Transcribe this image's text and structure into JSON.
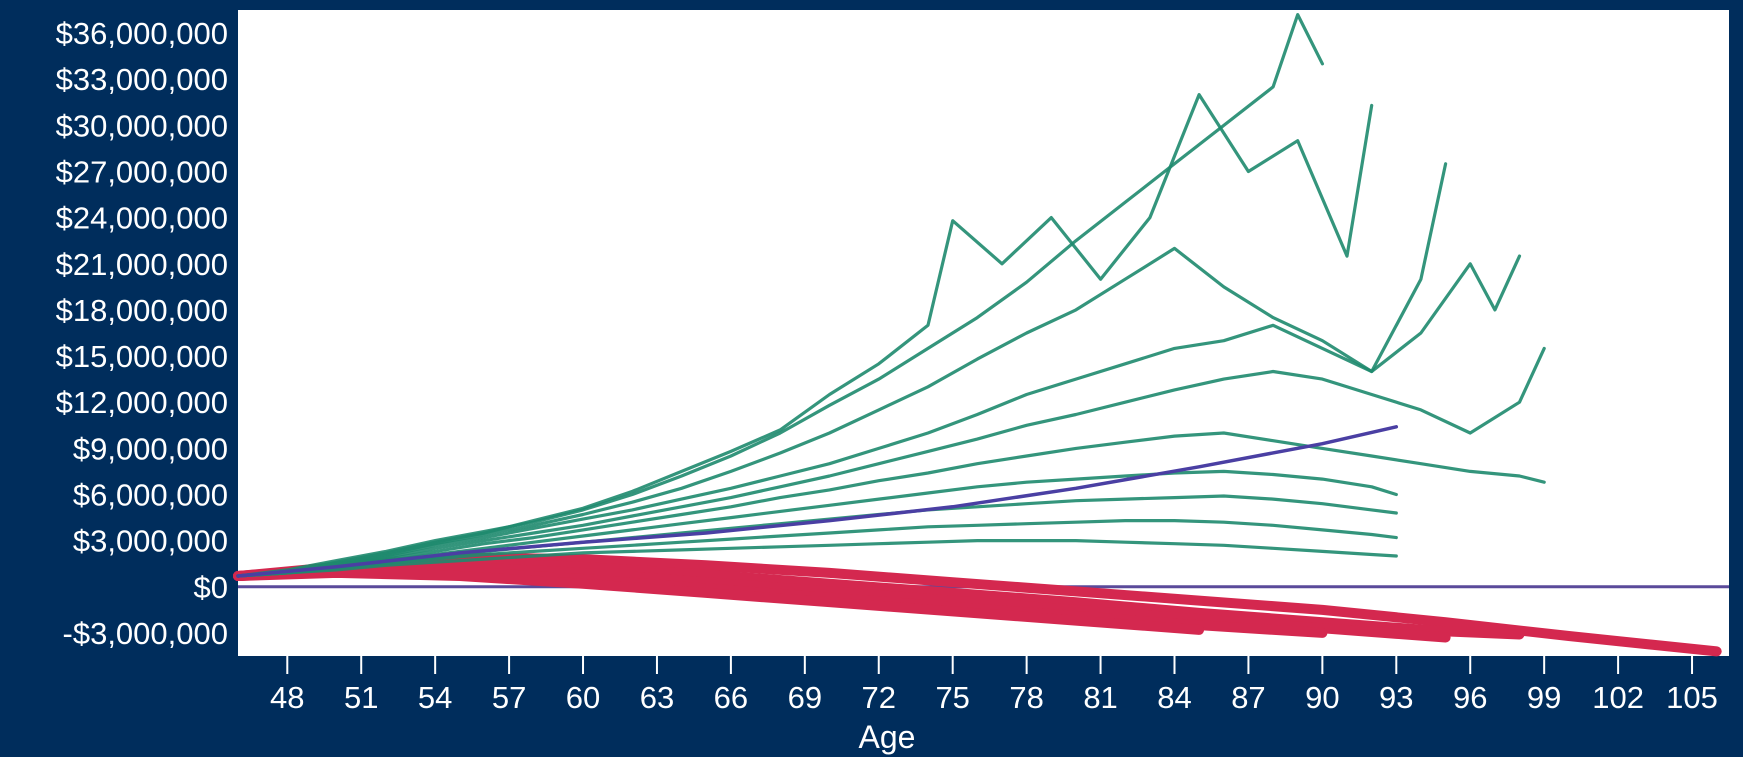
{
  "chart_data": {
    "type": "line",
    "title": "",
    "xlabel": "Age",
    "ylabel": "",
    "xlim": [
      46,
      106.5
    ],
    "ylim": [
      -4500000,
      37500000
    ],
    "x_ticks": [
      48,
      51,
      54,
      57,
      60,
      63,
      66,
      69,
      72,
      75,
      78,
      81,
      84,
      87,
      90,
      93,
      96,
      99,
      102,
      105
    ],
    "x_tick_labels": [
      "48",
      "51",
      "54",
      "57",
      "60",
      "63",
      "66",
      "69",
      "72",
      "75",
      "78",
      "81",
      "84",
      "87",
      "90",
      "93",
      "96",
      "99",
      "102",
      "105"
    ],
    "y_ticks": [
      -3000000,
      0,
      3000000,
      6000000,
      9000000,
      12000000,
      15000000,
      18000000,
      21000000,
      24000000,
      27000000,
      30000000,
      33000000,
      36000000
    ],
    "y_tick_labels": [
      "-$3,000,000",
      "$0",
      "$3,000,000",
      "$6,000,000",
      "$9,000,000",
      "$12,000,000",
      "$15,000,000",
      "$18,000,000",
      "$21,000,000",
      "$24,000,000",
      "$27,000,000",
      "$30,000,000",
      "$33,000,000",
      "$36,000,000"
    ],
    "grid": false,
    "legend": "none",
    "colors": {
      "frame": "#002d5c",
      "plot_bg": "#ffffff",
      "success": "#1e8a6e",
      "failure": "#d4284f",
      "median": "#4a3fa3",
      "zero_line": "#5a4a9a"
    },
    "series": [
      {
        "group": "success",
        "x": [
          46,
          48,
          50,
          52,
          54,
          56,
          58,
          60,
          62,
          64,
          66,
          68,
          70,
          72,
          74,
          76,
          78,
          80,
          82,
          84,
          86,
          88,
          89,
          90
        ],
        "values": [
          700000,
          1100000,
          1700000,
          2300000,
          3000000,
          3600000,
          4200000,
          5000000,
          6000000,
          7200000,
          8500000,
          10000000,
          11800000,
          13500000,
          15500000,
          17500000,
          19800000,
          22500000,
          25000000,
          27500000,
          30000000,
          32500000,
          37200000,
          34000000
        ]
      },
      {
        "group": "success",
        "x": [
          46,
          48,
          50,
          52,
          54,
          56,
          58,
          60,
          62,
          64,
          66,
          68,
          70,
          72,
          74,
          75,
          77,
          79,
          81,
          83,
          85,
          87,
          89,
          91,
          92
        ],
        "values": [
          700000,
          1000000,
          1600000,
          2200000,
          2900000,
          3500000,
          4300000,
          5100000,
          6200000,
          7500000,
          8800000,
          10200000,
          12500000,
          14500000,
          17000000,
          23800000,
          21000000,
          24000000,
          20000000,
          24000000,
          32000000,
          27000000,
          29000000,
          21500000,
          31300000
        ]
      },
      {
        "group": "success",
        "x": [
          46,
          48,
          50,
          52,
          54,
          56,
          58,
          60,
          62,
          64,
          66,
          68,
          70,
          72,
          74,
          76,
          78,
          80,
          82,
          84,
          86,
          88,
          90,
          92,
          94,
          95
        ],
        "values": [
          700000,
          1000000,
          1500000,
          2100000,
          2800000,
          3400000,
          4000000,
          4700000,
          5500000,
          6400000,
          7500000,
          8700000,
          10000000,
          11500000,
          13000000,
          14800000,
          16500000,
          18000000,
          20000000,
          22000000,
          19500000,
          17500000,
          16000000,
          14000000,
          20000000,
          27500000
        ]
      },
      {
        "group": "success",
        "x": [
          46,
          48,
          50,
          52,
          54,
          56,
          58,
          60,
          62,
          64,
          66,
          68,
          70,
          72,
          74,
          76,
          78,
          80,
          82,
          84,
          86,
          88,
          90,
          92,
          94,
          96,
          97,
          98
        ],
        "values": [
          700000,
          1000000,
          1500000,
          2000000,
          2700000,
          3200000,
          3800000,
          4400000,
          5000000,
          5700000,
          6400000,
          7200000,
          8000000,
          9000000,
          10000000,
          11200000,
          12500000,
          13500000,
          14500000,
          15500000,
          16000000,
          17000000,
          15500000,
          14000000,
          16500000,
          21000000,
          18000000,
          21500000
        ]
      },
      {
        "group": "success",
        "x": [
          46,
          48,
          50,
          52,
          54,
          56,
          58,
          60,
          62,
          64,
          66,
          68,
          70,
          72,
          74,
          76,
          78,
          80,
          82,
          84,
          86,
          88,
          90,
          92,
          94,
          96,
          98,
          99
        ],
        "values": [
          700000,
          1000000,
          1400000,
          1900000,
          2500000,
          3000000,
          3500000,
          4000000,
          4600000,
          5200000,
          5800000,
          6500000,
          7200000,
          8000000,
          8800000,
          9600000,
          10500000,
          11200000,
          12000000,
          12800000,
          13500000,
          14000000,
          13500000,
          12500000,
          11500000,
          10000000,
          12000000,
          15500000
        ]
      },
      {
        "group": "success",
        "x": [
          46,
          48,
          50,
          52,
          54,
          56,
          58,
          60,
          62,
          64,
          66,
          68,
          70,
          72,
          74,
          76,
          78,
          80,
          82,
          84,
          86,
          88,
          90,
          92,
          94,
          96,
          98,
          99
        ],
        "values": [
          700000,
          1000000,
          1400000,
          1800000,
          2300000,
          2800000,
          3200000,
          3700000,
          4200000,
          4700000,
          5200000,
          5800000,
          6300000,
          6900000,
          7400000,
          8000000,
          8500000,
          9000000,
          9400000,
          9800000,
          10000000,
          9500000,
          9000000,
          8500000,
          8000000,
          7500000,
          7200000,
          6800000
        ]
      },
      {
        "group": "success",
        "x": [
          46,
          48,
          50,
          52,
          54,
          56,
          58,
          60,
          62,
          64,
          66,
          68,
          70,
          72,
          74,
          76,
          78,
          80,
          82,
          84,
          86,
          88,
          90,
          92,
          93
        ],
        "values": [
          700000,
          900000,
          1300000,
          1700000,
          2100000,
          2500000,
          2900000,
          3300000,
          3700000,
          4100000,
          4500000,
          4900000,
          5300000,
          5700000,
          6100000,
          6500000,
          6800000,
          7000000,
          7200000,
          7400000,
          7500000,
          7300000,
          7000000,
          6500000,
          6000000
        ]
      },
      {
        "group": "success",
        "x": [
          46,
          48,
          50,
          52,
          54,
          56,
          58,
          60,
          62,
          64,
          66,
          68,
          70,
          72,
          74,
          76,
          78,
          80,
          82,
          84,
          86,
          88,
          90,
          92,
          93
        ],
        "values": [
          700000,
          900000,
          1200000,
          1600000,
          1900000,
          2300000,
          2600000,
          2900000,
          3200000,
          3500000,
          3800000,
          4100000,
          4400000,
          4700000,
          5000000,
          5200000,
          5400000,
          5600000,
          5700000,
          5800000,
          5900000,
          5700000,
          5400000,
          5000000,
          4800000
        ]
      },
      {
        "group": "success",
        "x": [
          46,
          48,
          50,
          52,
          54,
          56,
          58,
          60,
          62,
          64,
          66,
          68,
          70,
          72,
          74,
          76,
          78,
          80,
          82,
          84,
          86,
          88,
          90,
          92,
          93
        ],
        "values": [
          700000,
          900000,
          1200000,
          1500000,
          1800000,
          2100000,
          2300000,
          2500000,
          2700000,
          2900000,
          3100000,
          3300000,
          3500000,
          3700000,
          3900000,
          4000000,
          4100000,
          4200000,
          4300000,
          4300000,
          4200000,
          4000000,
          3700000,
          3400000,
          3200000
        ]
      },
      {
        "group": "success",
        "x": [
          46,
          48,
          50,
          52,
          54,
          56,
          58,
          60,
          62,
          64,
          66,
          68,
          70,
          72,
          74,
          76,
          78,
          80,
          82,
          84,
          86,
          88,
          90,
          92,
          93
        ],
        "values": [
          700000,
          900000,
          1100000,
          1400000,
          1600000,
          1800000,
          2000000,
          2200000,
          2300000,
          2400000,
          2500000,
          2600000,
          2700000,
          2800000,
          2900000,
          3000000,
          3000000,
          3000000,
          2900000,
          2800000,
          2700000,
          2500000,
          2300000,
          2100000,
          2000000
        ]
      },
      {
        "group": "failure",
        "x": [
          46,
          50,
          55,
          60,
          65,
          70,
          75,
          80,
          85,
          90,
          95,
          100,
          106
        ],
        "values": [
          700000,
          1300000,
          1900000,
          1800000,
          1400000,
          900000,
          300000,
          -300000,
          -900000,
          -1500000,
          -2300000,
          -3200000,
          -4200000
        ]
      },
      {
        "group": "failure",
        "x": [
          46,
          50,
          55,
          60,
          65,
          70,
          75,
          80,
          85,
          90,
          95,
          98
        ],
        "values": [
          700000,
          1200000,
          1600000,
          1300000,
          800000,
          200000,
          -400000,
          -1000000,
          -1700000,
          -2300000,
          -2900000,
          -3100000
        ]
      },
      {
        "group": "failure",
        "x": [
          46,
          50,
          55,
          60,
          65,
          70,
          75,
          80,
          85,
          90,
          95
        ],
        "values": [
          700000,
          1100000,
          1300000,
          900000,
          300000,
          -300000,
          -900000,
          -1500000,
          -2100000,
          -2700000,
          -3300000
        ]
      },
      {
        "group": "failure",
        "x": [
          46,
          50,
          55,
          60,
          65,
          70,
          75,
          80,
          85,
          90
        ],
        "values": [
          700000,
          1000000,
          1000000,
          500000,
          -100000,
          -700000,
          -1300000,
          -1900000,
          -2500000,
          -3000000
        ]
      },
      {
        "group": "failure",
        "x": [
          46,
          50,
          55,
          60,
          65,
          70,
          75,
          80,
          85
        ],
        "values": [
          700000,
          900000,
          700000,
          200000,
          -400000,
          -1000000,
          -1600000,
          -2200000,
          -2800000
        ]
      },
      {
        "group": "median",
        "x": [
          46,
          50,
          55,
          60,
          65,
          70,
          75,
          80,
          85,
          90,
          93
        ],
        "values": [
          700000,
          1300000,
          2200000,
          2900000,
          3500000,
          4300000,
          5200000,
          6400000,
          7800000,
          9300000,
          10400000
        ]
      }
    ],
    "zero_line": {
      "x": [
        46,
        106.5
      ],
      "value": 0
    }
  }
}
